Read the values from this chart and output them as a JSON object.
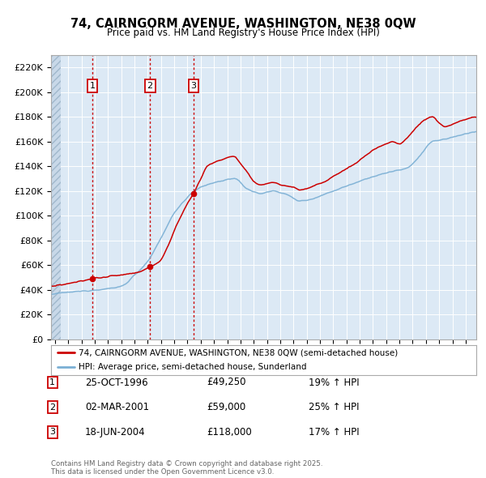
{
  "title1": "74, CAIRNGORM AVENUE, WASHINGTON, NE38 0QW",
  "title2": "Price paid vs. HM Land Registry's House Price Index (HPI)",
  "legend_red": "74, CAIRNGORM AVENUE, WASHINGTON, NE38 0QW (semi-detached house)",
  "legend_blue": "HPI: Average price, semi-detached house, Sunderland",
  "transactions": [
    {
      "num": 1,
      "date": "25-OCT-1996",
      "price": 49250,
      "pct": "19% ↑ HPI",
      "year_x": 1996.82
    },
    {
      "num": 2,
      "date": "02-MAR-2001",
      "price": 59000,
      "pct": "25% ↑ HPI",
      "year_x": 2001.17
    },
    {
      "num": 3,
      "date": "18-JUN-2004",
      "price": 118000,
      "pct": "17% ↑ HPI",
      "year_x": 2004.46
    }
  ],
  "footer": "Contains HM Land Registry data © Crown copyright and database right 2025.\nThis data is licensed under the Open Government Licence v3.0.",
  "ylim": [
    0,
    230000
  ],
  "yticks": [
    0,
    20000,
    40000,
    60000,
    80000,
    100000,
    120000,
    140000,
    160000,
    180000,
    200000,
    220000
  ],
  "xlim_start": 1993.7,
  "xlim_end": 2025.8,
  "bg_color": "#dce9f5",
  "hatch_color": "#b8cfe0",
  "red_color": "#cc0000",
  "blue_color": "#7aafd4",
  "grid_color": "#ffffff",
  "spine_color": "#aaaaaa"
}
